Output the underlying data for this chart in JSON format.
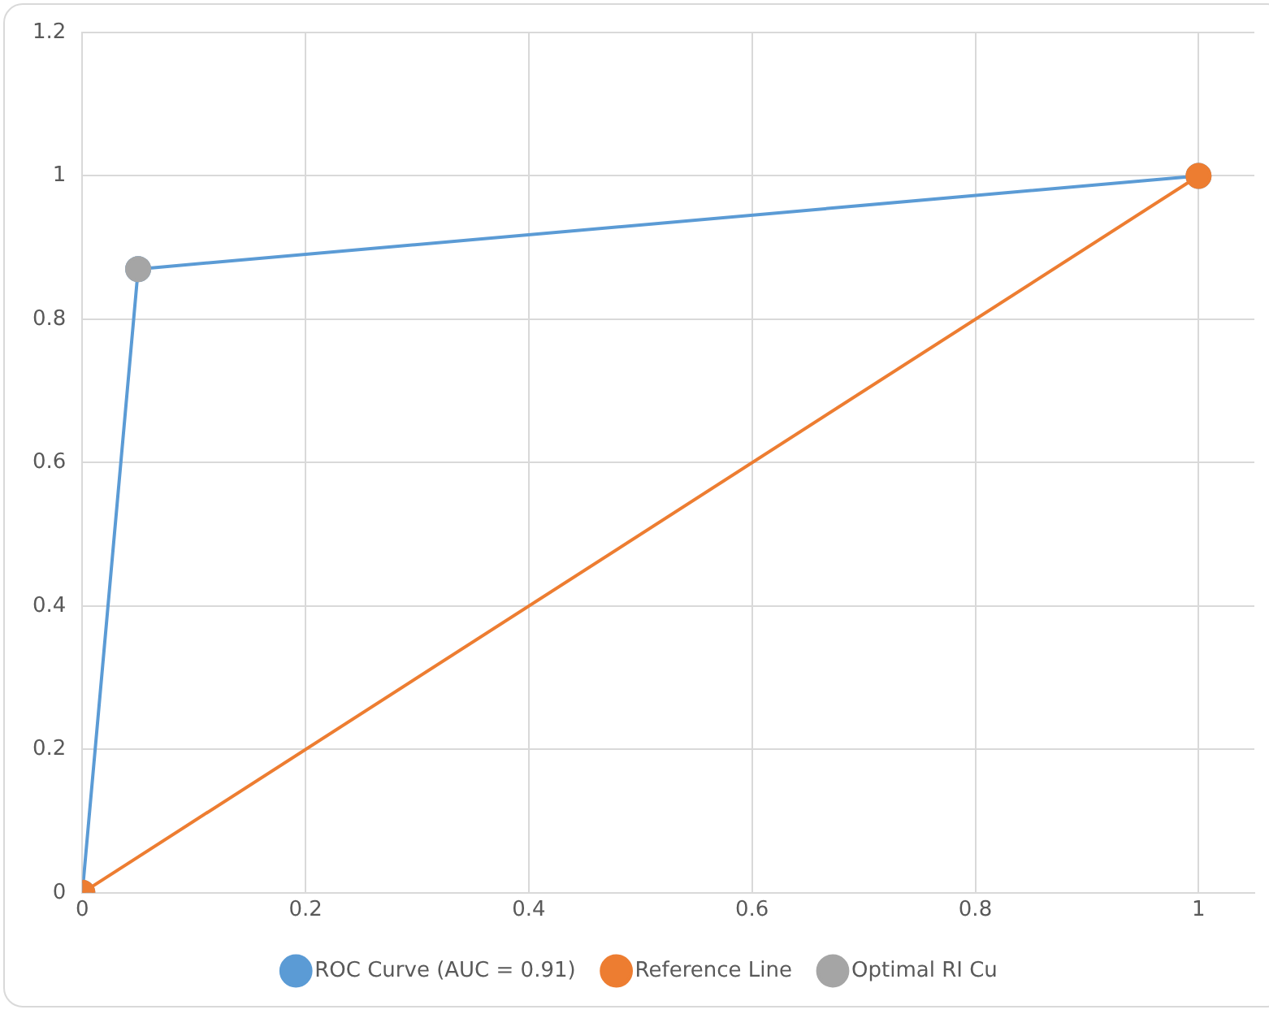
{
  "chart_data": {
    "type": "scatter",
    "series": [
      {
        "name": "ROC Curve (AUC = 0.91)",
        "type": "line",
        "color": "#5b9bd5",
        "x": [
          0,
          0.05,
          1
        ],
        "values": [
          0,
          0.87,
          1
        ]
      },
      {
        "name": "Reference Line",
        "type": "line",
        "color": "#ed7d31",
        "x": [
          0,
          1
        ],
        "values": [
          0,
          1
        ]
      },
      {
        "name": "Optimal RI Cu",
        "color": "#a5a5a5",
        "x": [
          0.05
        ],
        "values": [
          0.87
        ]
      }
    ],
    "xlim": [
      0,
      1.05
    ],
    "xticks": [
      0,
      0.2,
      0.4,
      0.6,
      0.8,
      1
    ],
    "ylim": [
      0,
      1.2
    ],
    "yticks": [
      0,
      0.2,
      0.4,
      0.6,
      0.8,
      1,
      1.2
    ],
    "grid": true,
    "legend": "bottom",
    "marker": "circle"
  }
}
